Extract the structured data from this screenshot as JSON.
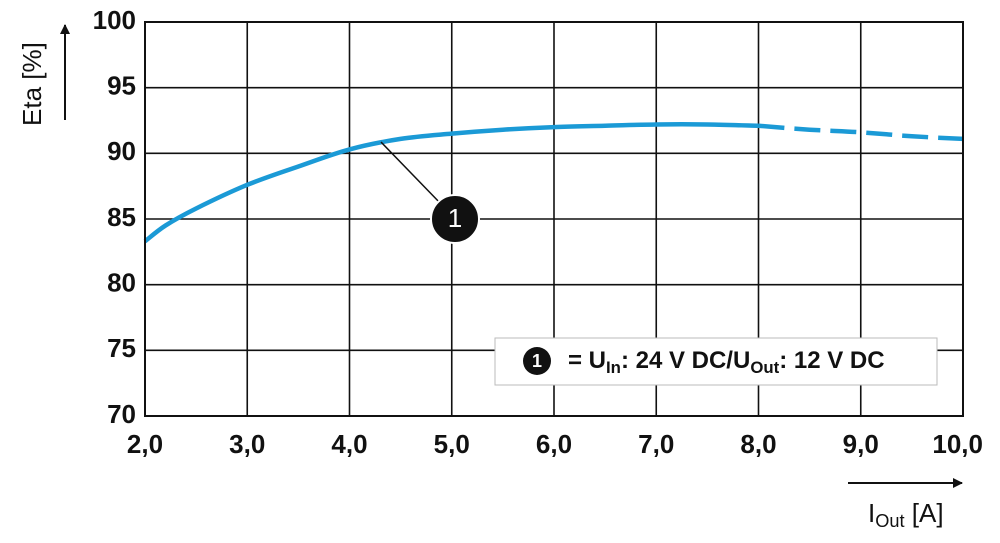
{
  "chart_data": {
    "type": "line",
    "x": [
      2.0,
      2.2,
      2.5,
      3.0,
      3.5,
      4.0,
      4.5,
      5.0,
      5.5,
      6.0,
      6.5,
      7.0,
      7.5,
      8.0,
      8.5,
      9.0,
      9.5,
      10.0
    ],
    "series": [
      {
        "name_parts": [
          {
            "text": "= U"
          },
          {
            "text": "In",
            "sub": true
          },
          {
            "text": ": 24 V DC/U"
          },
          {
            "text": "Out",
            "sub": true
          },
          {
            "text": ": 12 V DC"
          }
        ],
        "marker": "1",
        "color": "#1b9ad6",
        "values": [
          83.3,
          84.5,
          85.8,
          87.6,
          89.0,
          90.3,
          91.1,
          91.5,
          91.8,
          92.0,
          92.1,
          92.2,
          92.2,
          92.1,
          91.8,
          91.6,
          91.3,
          91.1
        ],
        "dashed_from_x": 8.0
      }
    ],
    "annotation": "1",
    "xlabel_parts": [
      {
        "text": "I"
      },
      {
        "text": "Out",
        "sub": true
      },
      {
        "text": " [A]"
      }
    ],
    "ylabel": "Eta [%]",
    "xlim": [
      2,
      10
    ],
    "ylim": [
      70,
      100
    ],
    "xticks": [
      {
        "value": 2,
        "label": "2,0"
      },
      {
        "value": 3,
        "label": "3,0"
      },
      {
        "value": 4,
        "label": "4,0"
      },
      {
        "value": 5,
        "label": "5,0"
      },
      {
        "value": 6,
        "label": "6,0"
      },
      {
        "value": 7,
        "label": "7,0"
      },
      {
        "value": 8,
        "label": "8,0"
      },
      {
        "value": 9,
        "label": "9,0"
      },
      {
        "value": 10,
        "label": "10,0"
      }
    ],
    "yticks": [
      70,
      75,
      80,
      85,
      90,
      95,
      100
    ],
    "grid": true
  }
}
